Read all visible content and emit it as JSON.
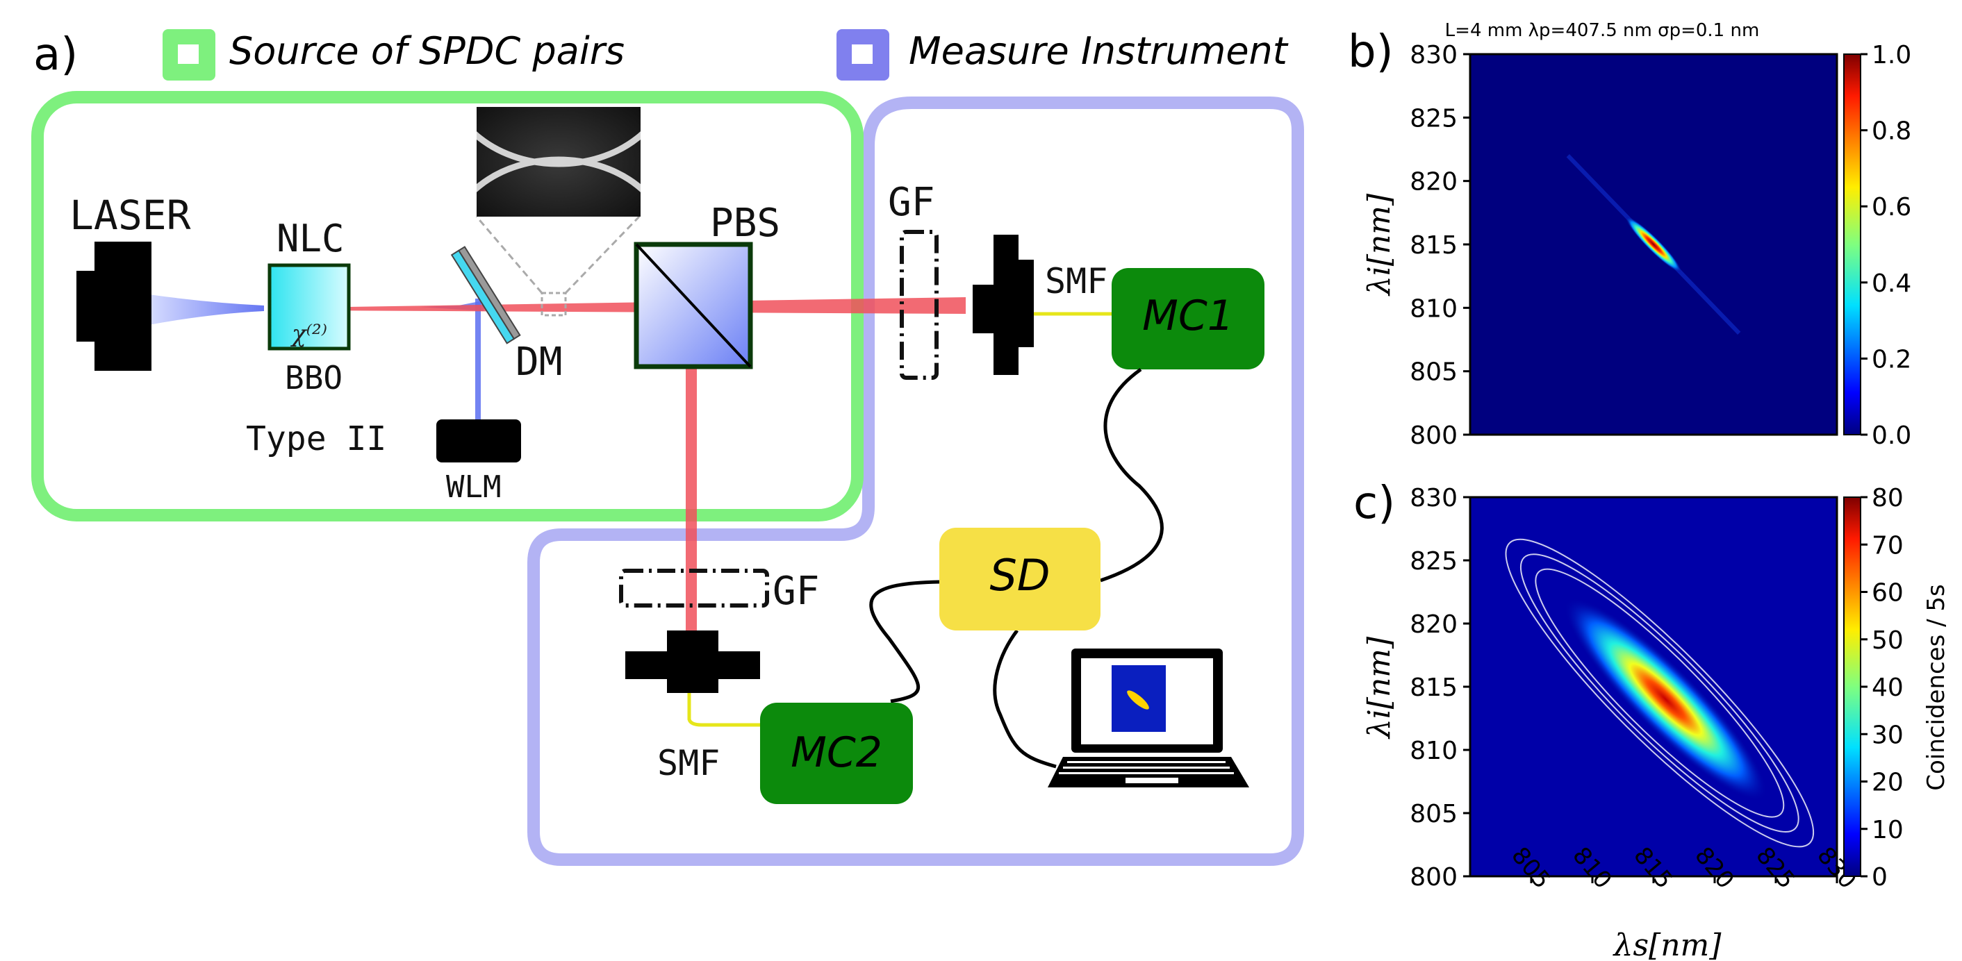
{
  "panel_labels": {
    "a": "a)",
    "b": "b)",
    "c": "c)"
  },
  "legend": {
    "source": "Source of SPDC pairs",
    "measure": "Measure Instrument"
  },
  "colors": {
    "source_frame": "#7ef07e",
    "measure_frame": "#b3b3f4",
    "legend_source": "#7ef07e",
    "legend_measure": "#8080ee",
    "green_box": "#0c8a0c",
    "sd_box": "#f6e046",
    "beam_red": "#f0505a",
    "beam_blue": "#6d7ef0",
    "crystal": "#40e8f0"
  },
  "components": {
    "laser": "LASER",
    "nlc": "NLC",
    "chi": "χ⁽²⁾",
    "bbo": "BBO",
    "type": "Type II",
    "dm": "DM",
    "pbs": "PBS",
    "wlm": "WLM",
    "gf1": "GF",
    "gf2": "GF",
    "smf1": "SMF",
    "smf2": "SMF",
    "mc1": "MC1",
    "mc2": "MC2",
    "sd": "SD"
  },
  "chart_data": [
    {
      "type": "heatmap",
      "panel": "b",
      "title": "L=4 mm λp=407.5 nm σp=0.1 nm",
      "ylabel": "λi[nm]",
      "xlabel": "",
      "xlim": [
        800,
        830
      ],
      "ylim": [
        800,
        830
      ],
      "yticks": [
        "800",
        "805",
        "810",
        "815",
        "820",
        "825",
        "830"
      ],
      "xticks": [],
      "peak": {
        "x": 815,
        "y": 815,
        "value": 1.0
      },
      "orientation": "anti-diagonal",
      "colorbar": {
        "min": 0.0,
        "max": 1.0,
        "ticks": [
          "0.0",
          "0.2",
          "0.4",
          "0.6",
          "0.8",
          "1.0"
        ],
        "label": ""
      }
    },
    {
      "type": "heatmap",
      "panel": "c",
      "title": "",
      "xlabel": "λs[nm]",
      "ylabel": "λi[nm]",
      "xlim": [
        800,
        830
      ],
      "ylim": [
        800,
        830
      ],
      "xticks": [
        "805",
        "810",
        "815",
        "820",
        "825",
        "830"
      ],
      "yticks": [
        "800",
        "805",
        "810",
        "815",
        "820",
        "825",
        "830"
      ],
      "peak": {
        "x": 816,
        "y": 814,
        "value": 80
      },
      "orientation": "anti-diagonal",
      "colorbar": {
        "min": 0,
        "max": 80,
        "ticks": [
          "0",
          "10",
          "20",
          "30",
          "40",
          "50",
          "60",
          "70",
          "80"
        ],
        "label": "Coincidences / 5s"
      }
    }
  ]
}
